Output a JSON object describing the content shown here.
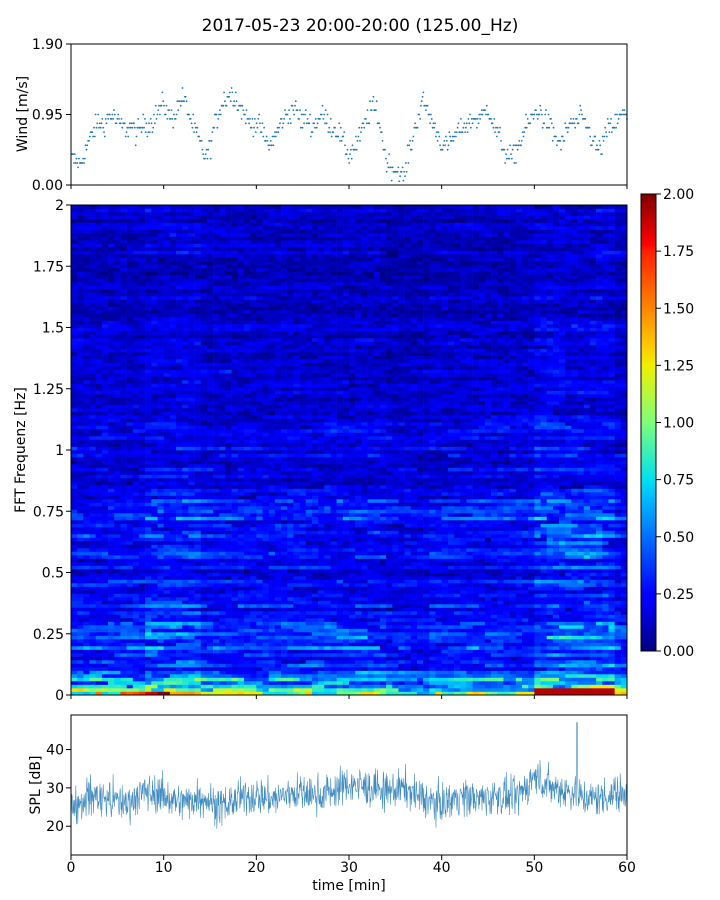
{
  "title": "2017-05-23 20:00-20:00 (125.00_Hz)",
  "chart_data": [
    {
      "type": "scatter",
      "panel": "wind",
      "ylabel": "Wind [m/s]",
      "xlim": [
        0,
        60
      ],
      "ylim": [
        0.0,
        1.9
      ],
      "yticks": [
        0.0,
        0.95,
        1.9
      ],
      "ytick_labels": [
        "0.00",
        "0.95",
        "1.90"
      ],
      "marker_color": "#1f77b4",
      "series": [
        {
          "x": [
            0.5,
            1,
            1.5,
            2,
            2.5,
            3,
            3.5,
            4,
            4.5,
            5,
            5.5,
            6,
            6.5,
            7,
            7.5,
            8,
            8.5,
            9,
            9.5,
            10,
            10.5,
            11,
            11.5,
            12,
            12.5,
            13,
            13.5,
            14,
            14.5,
            15,
            15.5,
            16,
            16.5,
            17,
            17.5,
            18,
            18.5,
            19,
            19.5,
            20,
            20.5,
            21,
            21.5,
            22,
            22.5,
            23,
            23.5,
            24,
            24.5,
            25,
            25.5,
            26,
            26.5,
            27,
            27.5,
            28,
            28.5,
            29,
            29.5,
            30,
            30.5,
            31,
            31.5,
            32,
            32.5,
            33,
            33.5,
            34,
            34.5,
            35,
            35.5,
            36,
            36.5,
            37,
            37.5,
            38,
            38.5,
            39,
            39.5,
            40,
            40.5,
            41,
            41.5,
            42,
            42.5,
            43,
            43.5,
            44,
            44.5,
            45,
            45.5,
            46,
            46.5,
            47,
            47.5,
            48,
            48.5,
            49,
            49.5,
            50,
            50.5,
            51,
            51.5,
            52,
            52.5,
            53,
            53.5,
            54,
            54.5,
            55,
            55.5,
            56,
            56.5,
            57,
            57.5,
            58,
            58.5,
            59,
            59.5
          ],
          "y": [
            0.35,
            0.25,
            0.45,
            0.6,
            0.75,
            0.85,
            0.8,
            0.9,
            0.95,
            0.85,
            0.8,
            0.75,
            0.8,
            0.7,
            0.75,
            0.85,
            0.8,
            0.9,
            1.0,
            1.1,
            0.95,
            0.9,
            1.05,
            1.2,
            1.05,
            0.85,
            0.7,
            0.55,
            0.35,
            0.5,
            0.8,
            1.0,
            1.15,
            1.2,
            1.25,
            1.1,
            1.0,
            0.9,
            0.8,
            0.85,
            0.75,
            0.6,
            0.55,
            0.65,
            0.8,
            0.9,
            0.95,
            1.05,
            0.95,
            0.85,
            0.9,
            0.75,
            0.85,
            0.95,
            0.9,
            0.8,
            0.75,
            0.7,
            0.55,
            0.4,
            0.5,
            0.6,
            0.75,
            0.9,
            1.05,
            1.0,
            0.7,
            0.35,
            0.25,
            0.2,
            0.15,
            0.1,
            0.45,
            0.7,
            0.95,
            1.1,
            1.0,
            0.85,
            0.7,
            0.55,
            0.5,
            0.6,
            0.65,
            0.75,
            0.8,
            0.85,
            0.9,
            0.85,
            0.95,
            1.05,
            0.85,
            0.7,
            0.55,
            0.4,
            0.35,
            0.45,
            0.6,
            0.75,
            0.85,
            0.95,
            1.0,
            0.9,
            0.85,
            0.7,
            0.6,
            0.55,
            0.75,
            0.85,
            0.8,
            0.9,
            0.85,
            0.7,
            0.55,
            0.45,
            0.6,
            0.75,
            0.8,
            0.85,
            0.95
          ]
        }
      ]
    },
    {
      "type": "heatmap",
      "panel": "spectrogram",
      "ylabel": "FFT Frequenz [Hz]",
      "xlim": [
        0,
        60
      ],
      "ylim": [
        0,
        2
      ],
      "yticks": [
        0,
        0.25,
        0.5,
        0.75,
        1,
        1.25,
        1.5,
        1.75,
        2
      ],
      "ytick_labels": [
        "0",
        "0.25",
        "0.5",
        "0.75",
        "1",
        "1.25",
        "1.5",
        "1.75",
        "2"
      ],
      "colorscale": "jet",
      "clim": [
        0.0,
        2.0
      ],
      "colorbar_ticks": [
        "0.00",
        "0.25",
        "0.50",
        "0.75",
        "1.00",
        "1.25",
        "1.50",
        "1.75",
        "2.00"
      ],
      "colorbar_values": [
        0.0,
        0.25,
        0.5,
        0.75,
        1.0,
        1.25,
        1.5,
        1.75,
        2.0
      ]
    },
    {
      "type": "line",
      "panel": "spl",
      "ylabel": "SPL [dB]",
      "xlabel": "time [min]",
      "xlim": [
        0,
        60
      ],
      "ylim": [
        12.5,
        49
      ],
      "yticks": [
        20,
        30,
        40
      ],
      "ytick_labels": [
        "20",
        "30",
        "40"
      ],
      "xticks": [
        0,
        10,
        20,
        30,
        40,
        50,
        60
      ],
      "xtick_labels": [
        "0",
        "10",
        "20",
        "30",
        "40",
        "50",
        "60"
      ],
      "line_color": "#1f77b4",
      "series": [
        {
          "x": [
            0,
            2,
            4,
            6,
            8,
            10,
            12,
            14,
            16,
            18,
            20,
            22,
            24,
            26,
            28,
            30,
            32,
            34,
            36,
            38,
            40,
            42,
            44,
            46,
            48,
            50,
            52,
            54,
            56,
            58,
            60
          ],
          "y": [
            25,
            28,
            27,
            26,
            29,
            28,
            26,
            28,
            25,
            27,
            28,
            27,
            29,
            28,
            29,
            31,
            30,
            29,
            30,
            27,
            26,
            28,
            27,
            28,
            27,
            33,
            30,
            29,
            27,
            28,
            29
          ]
        }
      ]
    }
  ]
}
